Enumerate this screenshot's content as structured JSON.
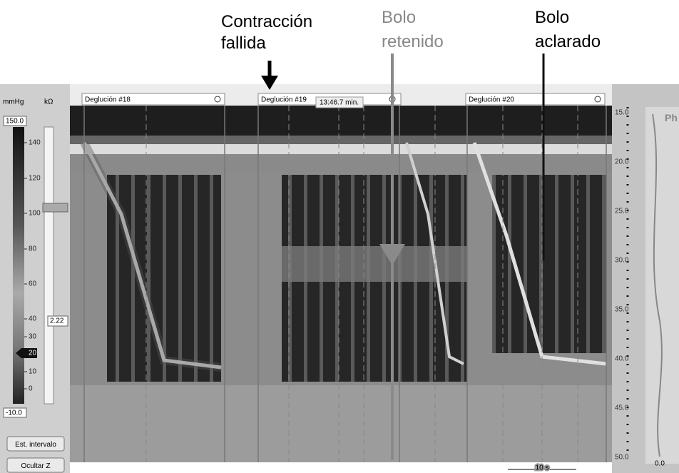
{
  "annotations": {
    "failed": [
      "Contracción",
      "fallida"
    ],
    "retained": [
      "Bolo",
      "retenido"
    ],
    "cleared": [
      "Bolo",
      "aclarado"
    ]
  },
  "swallows": [
    {
      "label": "Deglución #18"
    },
    {
      "label": "Deglución #19",
      "time": "13:46.7 min."
    },
    {
      "label": "Deglución #20"
    }
  ],
  "pressure_panel": {
    "unit": "mmHg",
    "impedance_unit": "kΩ",
    "max": "150.0",
    "min": "-10.0",
    "scale": [
      140,
      120,
      100,
      80,
      60,
      40,
      30,
      20,
      10,
      0
    ],
    "impedance_value": "2.22"
  },
  "buttons": [
    "Est. intervalo",
    "Ocultar Z"
  ],
  "position_axis": [
    "15.0",
    "20.0",
    "25.0",
    "30.0",
    "35.0",
    "40.0",
    "45.0",
    "50.0"
  ],
  "side_panel": {
    "title": "Ph",
    "bottom_value": "0.0"
  },
  "time_scale": "10 s"
}
